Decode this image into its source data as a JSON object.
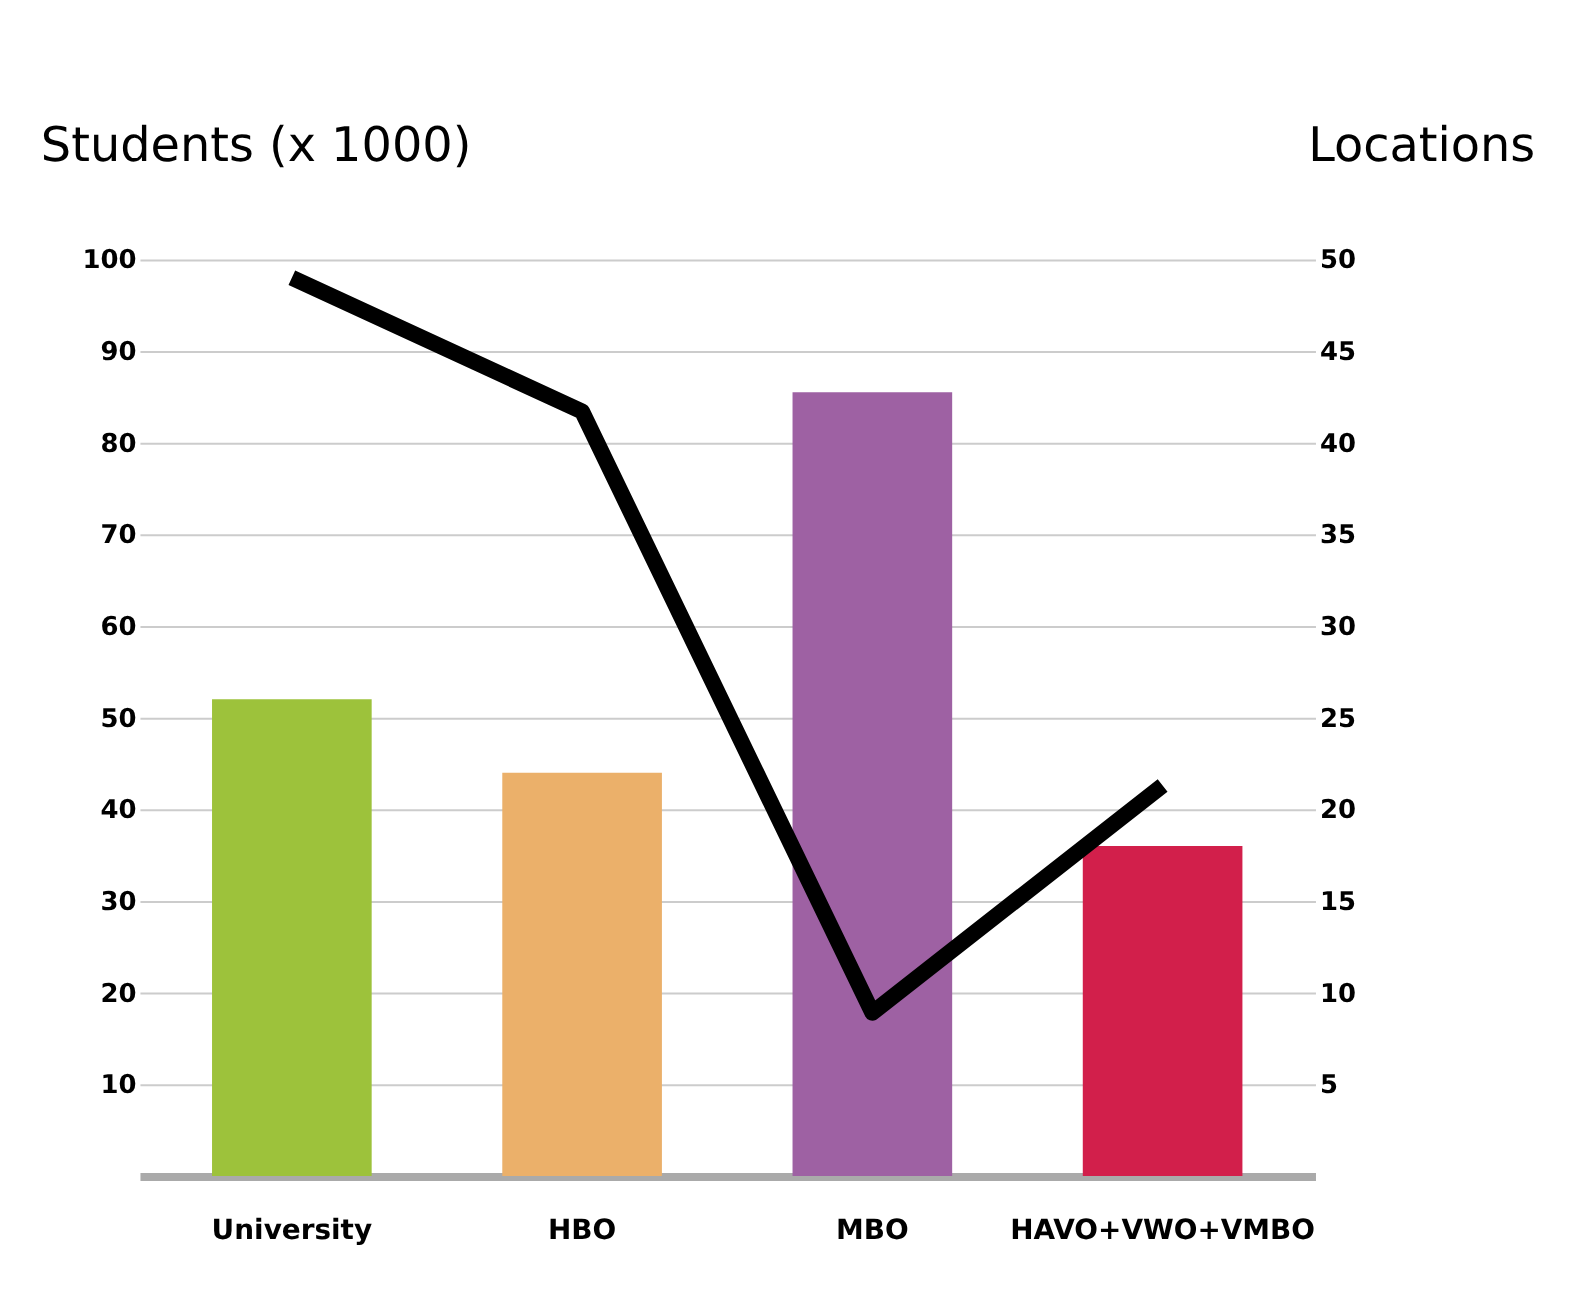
{
  "chart_data": {
    "type": "bar",
    "categories": [
      "University",
      "HBO",
      "MBO",
      "HAVO+VWO+VMBO"
    ],
    "series": [
      {
        "colors": [
          "#9dc23b",
          "#ebb06a",
          "#9e61a3",
          "#d21f4b"
        ],
        "values": [
          52,
          44,
          85.5,
          36
        ]
      },
      {
        "type": "line",
        "color": "#000000",
        "axis": "y2",
        "values": [
          49,
          41.7,
          8.9,
          21.3
        ]
      }
    ],
    "ylabel": "Students (x 1000)",
    "y2label": "Locations",
    "ylim": [
      0,
      100
    ],
    "yticks": [
      10,
      20,
      30,
      40,
      50,
      60,
      70,
      80,
      90,
      100
    ],
    "y2lim": [
      0,
      50
    ],
    "y2ticks": [
      5,
      10,
      15,
      20,
      25,
      30,
      35,
      40,
      45,
      50
    ],
    "grid": "y"
  }
}
